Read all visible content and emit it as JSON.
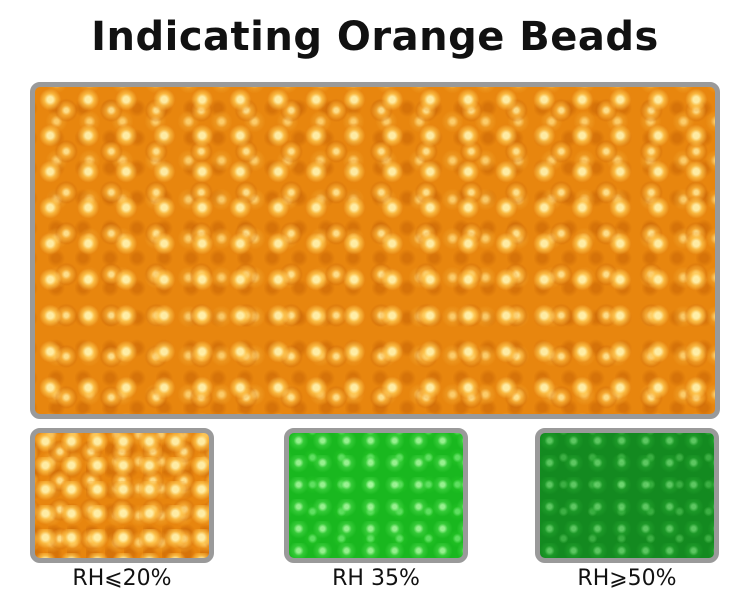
{
  "title": "Indicating Orange Beads",
  "swatches": [
    {
      "label": "RH⩽20%"
    },
    {
      "label": "RH 35%"
    },
    {
      "label": "RH⩾50%"
    }
  ]
}
